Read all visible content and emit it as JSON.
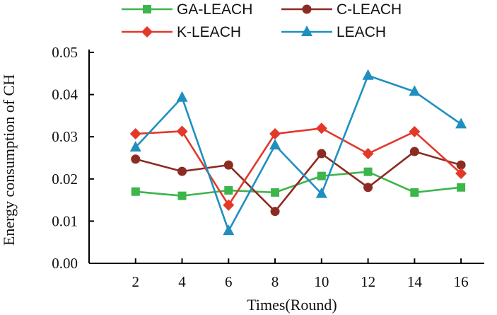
{
  "chart_data": {
    "type": "line",
    "xlabel": "Times(Round)",
    "ylabel": "Energy consumption of CH",
    "x": [
      2,
      4,
      6,
      8,
      10,
      12,
      14,
      16
    ],
    "xlim": [
      0,
      17
    ],
    "ylim": [
      0,
      0.05
    ],
    "yticks": [
      "0.00",
      "0.01",
      "0.02",
      "0.03",
      "0.04",
      "0.05"
    ],
    "xticks": [
      "2",
      "4",
      "6",
      "8",
      "10",
      "12",
      "14",
      "16"
    ],
    "grid": false,
    "legend_position": "top",
    "series": [
      {
        "name": "GA-LEACH",
        "color": "#3cb54a",
        "marker": "square",
        "values": [
          0.017,
          0.016,
          0.0173,
          0.0168,
          0.0207,
          0.0217,
          0.0168,
          0.018
        ]
      },
      {
        "name": "C-LEACH",
        "color": "#8b2b22",
        "marker": "circle",
        "values": [
          0.0247,
          0.0218,
          0.0233,
          0.0123,
          0.026,
          0.018,
          0.0265,
          0.0233
        ]
      },
      {
        "name": "K-LEACH",
        "color": "#e2392b",
        "marker": "diamond",
        "values": [
          0.0307,
          0.0313,
          0.0138,
          0.0307,
          0.032,
          0.026,
          0.0312,
          0.0213
        ]
      },
      {
        "name": "LEACH",
        "color": "#1f8fc0",
        "marker": "triangle",
        "values": [
          0.0275,
          0.0393,
          0.0077,
          0.028,
          0.0165,
          0.0445,
          0.0407,
          0.033
        ]
      }
    ]
  }
}
